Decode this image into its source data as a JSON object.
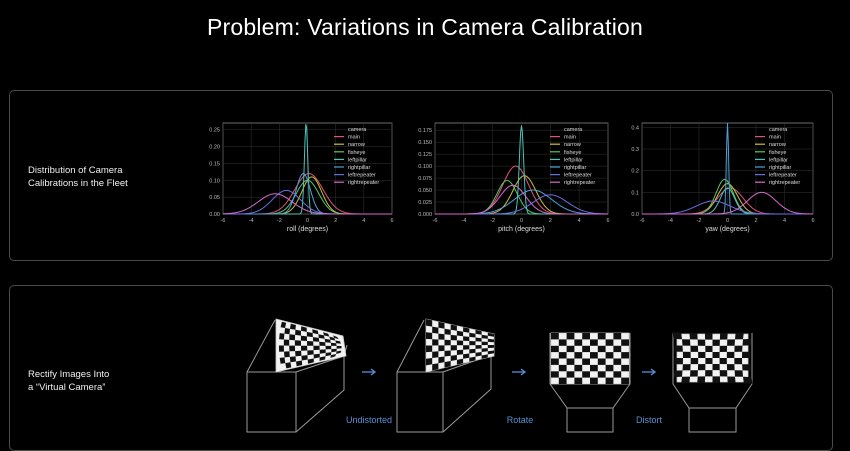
{
  "title": "Problem: Variations in Camera Calibration",
  "panels": {
    "distribution_label": [
      "Distribution of Camera",
      "Calibrations in the Fleet"
    ],
    "rectify_label": [
      "Rectify Images Into",
      "a “Virtual Camera”"
    ]
  },
  "pipeline": {
    "steps": [
      "Undistorted",
      "Rotate",
      "Distort"
    ],
    "arrow_color": "#5b8fd6",
    "label_color": "#5b8fd6"
  },
  "legend": {
    "title": "camera",
    "entries": [
      "main",
      "narrow",
      "fisheye",
      "leftpillar",
      "rightpillar",
      "leftrepeater",
      "rightrepeater"
    ]
  },
  "series_colors": {
    "main": "#e0537a",
    "narrow": "#c8c23a",
    "fisheye": "#57c85e",
    "leftpillar": "#4fc4b8",
    "rightpillar": "#4f9fd6",
    "leftrepeater": "#6a6fe0",
    "rightrepeater": "#d66ad0"
  },
  "chart_data": [
    {
      "type": "line",
      "xlabel": "roll (degrees)",
      "ylabel": "",
      "xlim": [
        -6,
        6
      ],
      "ylim": [
        0,
        0.27
      ],
      "xticks": [
        -6,
        -4,
        -2,
        0,
        2,
        4,
        6
      ],
      "yticks": [
        0.0,
        0.05,
        0.1,
        0.15,
        0.2,
        0.25
      ],
      "ytick_labels": [
        "0.00",
        "0.05",
        "0.10",
        "0.15",
        "0.20",
        "0.25"
      ],
      "grid": true,
      "legend_position": "top-right",
      "series": [
        {
          "name": "main",
          "mean": 0.1,
          "sd": 1.0,
          "peak": 0.12
        },
        {
          "name": "narrow",
          "mean": 0.3,
          "sd": 0.7,
          "peak": 0.11
        },
        {
          "name": "fisheye",
          "mean": 0.0,
          "sd": 0.8,
          "peak": 0.1
        },
        {
          "name": "leftpillar",
          "mean": -0.1,
          "sd": 0.12,
          "peak": 0.27
        },
        {
          "name": "rightpillar",
          "mean": -0.3,
          "sd": 0.5,
          "peak": 0.12
        },
        {
          "name": "leftrepeater",
          "mean": -1.5,
          "sd": 1.0,
          "peak": 0.07
        },
        {
          "name": "rightrepeater",
          "mean": -2.3,
          "sd": 1.2,
          "peak": 0.06
        }
      ]
    },
    {
      "type": "line",
      "xlabel": "pitch (degrees)",
      "ylabel": "",
      "xlim": [
        -6,
        6
      ],
      "ylim": [
        0,
        0.19
      ],
      "xticks": [
        -6,
        -4,
        -2,
        0,
        2,
        4,
        6
      ],
      "yticks": [
        0.0,
        0.025,
        0.05,
        0.075,
        0.1,
        0.125,
        0.15,
        0.175
      ],
      "ytick_labels": [
        "0.000",
        "0.025",
        "0.050",
        "0.075",
        "0.100",
        "0.125",
        "0.150",
        "0.175"
      ],
      "grid": true,
      "legend_position": "top-right",
      "series": [
        {
          "name": "main",
          "mean": -0.4,
          "sd": 0.9,
          "peak": 0.1
        },
        {
          "name": "narrow",
          "mean": 0.2,
          "sd": 0.8,
          "peak": 0.08
        },
        {
          "name": "fisheye",
          "mean": -1.0,
          "sd": 0.7,
          "peak": 0.07
        },
        {
          "name": "leftpillar",
          "mean": 0.0,
          "sd": 0.15,
          "peak": 0.185
        },
        {
          "name": "rightpillar",
          "mean": 0.8,
          "sd": 1.3,
          "peak": 0.05
        },
        {
          "name": "leftrepeater",
          "mean": 2.0,
          "sd": 1.2,
          "peak": 0.04
        },
        {
          "name": "rightrepeater",
          "mean": -0.6,
          "sd": 0.9,
          "peak": 0.06
        }
      ]
    },
    {
      "type": "line",
      "xlabel": "yaw (degrees)",
      "ylabel": "",
      "xlim": [
        -6,
        6
      ],
      "ylim": [
        0,
        0.42
      ],
      "xticks": [
        -6,
        -4,
        -2,
        0,
        2,
        4,
        6
      ],
      "yticks": [
        0.0,
        0.1,
        0.2,
        0.3,
        0.4
      ],
      "ytick_labels": [
        "0.0",
        "0.1",
        "0.2",
        "0.3",
        "0.4"
      ],
      "grid": true,
      "legend_position": "top-right",
      "series": [
        {
          "name": "main",
          "mean": 0.2,
          "sd": 0.9,
          "peak": 0.12
        },
        {
          "name": "narrow",
          "mean": 0.0,
          "sd": 0.7,
          "peak": 0.14
        },
        {
          "name": "fisheye",
          "mean": -0.2,
          "sd": 0.6,
          "peak": 0.16
        },
        {
          "name": "leftpillar",
          "mean": 0.0,
          "sd": 0.5,
          "peak": 0.12
        },
        {
          "name": "rightpillar",
          "mean": 0.0,
          "sd": 0.08,
          "peak": 0.42
        },
        {
          "name": "leftrepeater",
          "mean": -1.0,
          "sd": 1.2,
          "peak": 0.06
        },
        {
          "name": "rightrepeater",
          "mean": 2.4,
          "sd": 1.0,
          "peak": 0.1
        }
      ]
    }
  ]
}
